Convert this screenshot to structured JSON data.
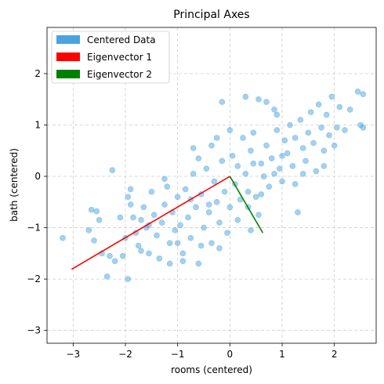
{
  "chart_data": {
    "type": "scatter",
    "title": "Principal Axes",
    "xlabel": "rooms (centered)",
    "ylabel": "bath (centered)",
    "xlim": [
      -3.5,
      2.8
    ],
    "ylim": [
      -3.25,
      2.9
    ],
    "xticks": [
      -3,
      -2,
      -1,
      0,
      1,
      2
    ],
    "yticks": [
      -3,
      -2,
      -1,
      0,
      1,
      2
    ],
    "grid": true,
    "legend_position": "top-left",
    "series": [
      {
        "name": "Centered Data",
        "kind": "scatter",
        "color": "#4aa3df",
        "points": [
          [
            -3.2,
            -1.2
          ],
          [
            -2.65,
            -0.65
          ],
          [
            -2.55,
            -0.68
          ],
          [
            -2.5,
            -0.85
          ],
          [
            -2.7,
            -1.05
          ],
          [
            -2.6,
            -1.25
          ],
          [
            -2.45,
            -1.5
          ],
          [
            -2.3,
            -1.55
          ],
          [
            -2.25,
            0.12
          ],
          [
            -2.35,
            -1.95
          ],
          [
            -2.2,
            -1.65
          ],
          [
            -2.05,
            -1.55
          ],
          [
            -1.95,
            -2.0
          ],
          [
            -2.0,
            -1.2
          ],
          [
            -1.95,
            -0.4
          ],
          [
            -1.9,
            -0.55
          ],
          [
            -1.85,
            -0.8
          ],
          [
            -1.8,
            -1.1
          ],
          [
            -1.75,
            -1.35
          ],
          [
            -1.7,
            -0.85
          ],
          [
            -1.65,
            -0.6
          ],
          [
            -1.6,
            -1.0
          ],
          [
            -1.55,
            -1.5
          ],
          [
            -1.5,
            -0.3
          ],
          [
            -1.45,
            -0.75
          ],
          [
            -1.4,
            -1.15
          ],
          [
            -1.35,
            -1.6
          ],
          [
            -1.3,
            -0.9
          ],
          [
            -1.25,
            -0.55
          ],
          [
            -1.2,
            -0.2
          ],
          [
            -1.15,
            -1.3
          ],
          [
            -1.1,
            -0.7
          ],
          [
            -1.05,
            -1.05
          ],
          [
            -1.0,
            -0.4
          ],
          [
            -0.95,
            -0.95
          ],
          [
            -0.9,
            -1.5
          ],
          [
            -0.85,
            -0.25
          ],
          [
            -0.8,
            -0.8
          ],
          [
            -0.75,
            -1.2
          ],
          [
            -0.7,
            0.05
          ],
          [
            -0.65,
            -0.6
          ],
          [
            -0.6,
            -1.7
          ],
          [
            -0.55,
            -0.35
          ],
          [
            -0.5,
            -1.0
          ],
          [
            -0.45,
            0.15
          ],
          [
            -0.4,
            -0.7
          ],
          [
            -0.35,
            -1.3
          ],
          [
            -0.3,
            -0.1
          ],
          [
            -0.25,
            -0.5
          ],
          [
            -0.2,
            -0.9
          ],
          [
            -0.15,
            0.3
          ],
          [
            -0.1,
            -0.3
          ],
          [
            -0.05,
            -1.1
          ],
          [
            0.0,
            -0.6
          ],
          [
            0.05,
            0.4
          ],
          [
            0.1,
            -0.15
          ],
          [
            0.15,
            0.2
          ],
          [
            0.2,
            -0.45
          ],
          [
            0.25,
            0.75
          ],
          [
            0.3,
            0.05
          ],
          [
            0.35,
            -0.3
          ],
          [
            0.4,
            0.5
          ],
          [
            0.45,
            0.85
          ],
          [
            0.5,
            -0.4
          ],
          [
            0.55,
            1.5
          ],
          [
            0.6,
            0.25
          ],
          [
            0.65,
            0.0
          ],
          [
            0.7,
            0.6
          ],
          [
            0.75,
            -0.2
          ],
          [
            0.8,
            0.35
          ],
          [
            0.85,
            1.3
          ],
          [
            0.9,
            0.9
          ],
          [
            0.95,
            0.15
          ],
          [
            1.0,
            -0.1
          ],
          [
            1.05,
            0.7
          ],
          [
            1.1,
            0.45
          ],
          [
            1.15,
            1.0
          ],
          [
            1.2,
            0.2
          ],
          [
            1.25,
            0.75
          ],
          [
            1.3,
            -0.7
          ],
          [
            1.35,
            1.1
          ],
          [
            1.4,
            0.55
          ],
          [
            1.45,
            0.3
          ],
          [
            1.5,
            0.85
          ],
          [
            1.55,
            1.25
          ],
          [
            1.6,
            0.65
          ],
          [
            1.65,
            0.1
          ],
          [
            1.7,
            1.4
          ],
          [
            1.75,
            0.95
          ],
          [
            1.8,
            0.5
          ],
          [
            1.85,
            1.2
          ],
          [
            1.9,
            0.8
          ],
          [
            1.95,
            1.55
          ],
          [
            2.0,
            0.6
          ],
          [
            2.05,
            0.95
          ],
          [
            2.1,
            1.35
          ],
          [
            2.2,
            0.9
          ],
          [
            2.3,
            1.3
          ],
          [
            2.45,
            1.65
          ],
          [
            2.55,
            1.6
          ],
          [
            2.5,
            1.0
          ],
          [
            2.55,
            0.95
          ],
          [
            -0.9,
            -1.65
          ],
          [
            -1.0,
            -1.3
          ],
          [
            0.7,
            1.45
          ],
          [
            0.3,
            1.55
          ],
          [
            -0.15,
            1.45
          ],
          [
            0.9,
            1.2
          ],
          [
            -0.7,
            0.55
          ],
          [
            -0.6,
            0.35
          ],
          [
            -0.35,
            0.6
          ],
          [
            -0.25,
            0.75
          ],
          [
            0.0,
            0.9
          ],
          [
            0.45,
            0.25
          ],
          [
            0.85,
            0.05
          ],
          [
            1.25,
            -0.15
          ],
          [
            0.55,
            -0.75
          ],
          [
            0.15,
            -0.85
          ],
          [
            -0.4,
            -0.55
          ],
          [
            -0.75,
            -0.45
          ],
          [
            -1.25,
            -0.05
          ],
          [
            -1.55,
            -0.95
          ],
          [
            -1.9,
            -0.25
          ],
          [
            -2.1,
            -0.8
          ],
          [
            -1.7,
            -1.45
          ],
          [
            -1.15,
            -1.7
          ],
          [
            -0.55,
            -1.35
          ],
          [
            -0.2,
            -1.4
          ],
          [
            0.4,
            -1.05
          ],
          [
            0.35,
            -0.6
          ],
          [
            0.6,
            -0.35
          ],
          [
            1.0,
            0.4
          ],
          [
            1.4,
            0.05
          ],
          [
            1.8,
            0.2
          ]
        ]
      },
      {
        "name": "Eigenvector 1",
        "kind": "line",
        "color": "#ff0000",
        "x": [
          0,
          -3.03
        ],
        "y": [
          0,
          -1.81
        ]
      },
      {
        "name": "Eigenvector 2",
        "kind": "line",
        "color": "#008000",
        "x": [
          0,
          0.63
        ],
        "y": [
          0,
          -1.1
        ]
      }
    ]
  }
}
